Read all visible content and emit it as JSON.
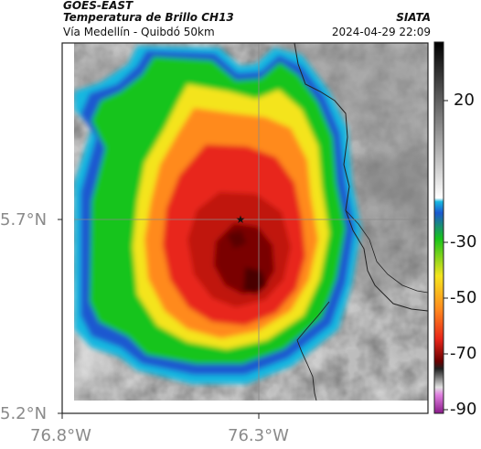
{
  "header": {
    "satellite": "GOES-EAST",
    "product": "Temperatura de Brillo CH13",
    "region": "Vía Medellín - Quibdó 50km",
    "agency": "SIATA",
    "datetime": "2024-04-29 22:09"
  },
  "axes": {
    "lat_ticks": [
      "5.7°N",
      "5.2°N"
    ],
    "lon_ticks": [
      "76.8°W",
      "76.3°W"
    ]
  },
  "colorbar": {
    "ticks": [
      "20",
      "-30",
      "-50",
      "-70",
      "-90"
    ],
    "unit_hint": "brightness temperature (°C)"
  },
  "marker": {
    "symbol": "★",
    "description": "star marker at map center"
  },
  "colors": {
    "cold_core": "#7a0000",
    "red": "#e8261a",
    "orange": "#ff8a1e",
    "yellow": "#f4e41e",
    "green": "#18c41a",
    "blue": "#1a58d0",
    "cyan": "#18b8e0",
    "gray_warm": "#c8c8c8"
  }
}
